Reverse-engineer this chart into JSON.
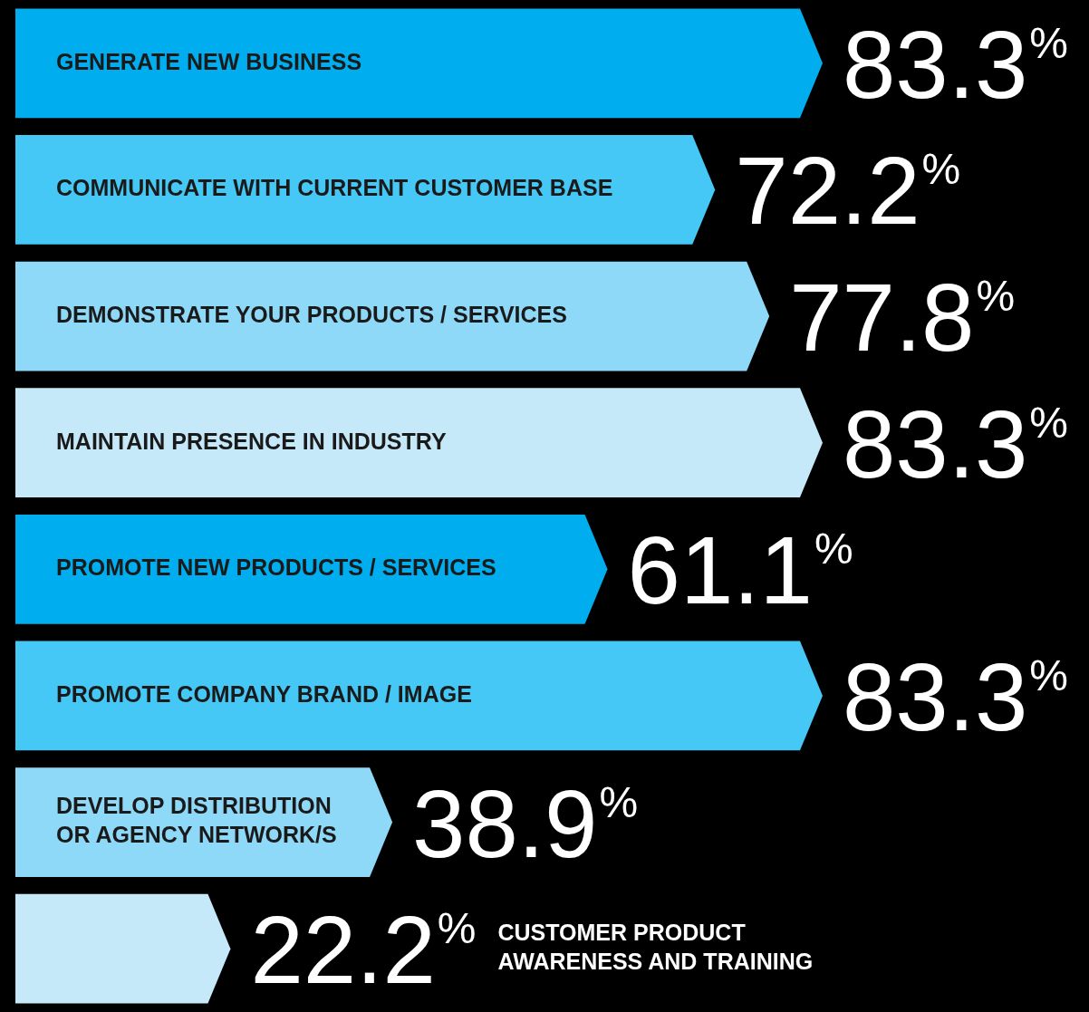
{
  "chart_data": {
    "type": "bar",
    "orientation": "horizontal",
    "categories": [
      "GENERATE NEW BUSINESS",
      "COMMUNICATE WITH CURRENT CUSTOMER BASE",
      "DEMONSTRATE YOUR PRODUCTS / SERVICES",
      "MAINTAIN PRESENCE IN INDUSTRY",
      "PROMOTE NEW PRODUCTS / SERVICES",
      "PROMOTE COMPANY BRAND / IMAGE",
      "DEVELOP DISTRIBUTION OR AGENCY NETWORK/S",
      "CUSTOMER PRODUCT AWARENESS AND TRAINING"
    ],
    "values": [
      83.3,
      72.2,
      77.8,
      83.3,
      61.1,
      83.3,
      38.9,
      22.2
    ],
    "colors": [
      "#00aeef",
      "#45c8f5",
      "#8ed8f8",
      "#c6e9f9",
      "#00aeef",
      "#45c8f5",
      "#8ed8f8",
      "#c6e9f9"
    ],
    "value_labels": [
      "83.3%",
      "72.2%",
      "77.8%",
      "83.3%",
      "61.1%",
      "83.3%",
      "38.9%",
      "22.2%"
    ]
  }
}
